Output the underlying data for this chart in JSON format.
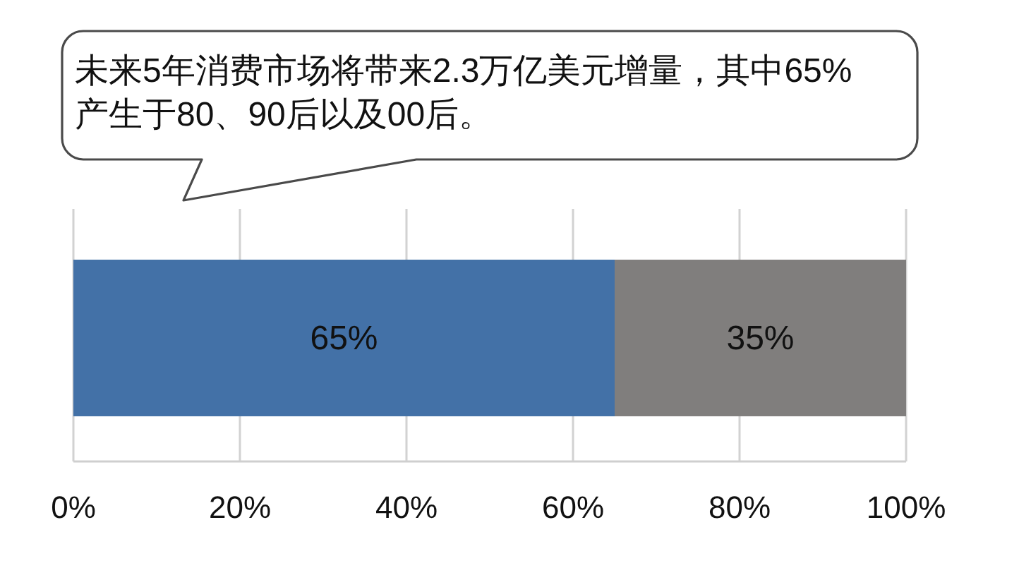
{
  "chart_data": {
    "type": "bar",
    "orientation": "horizontal",
    "stacked": true,
    "title": "未来5年消费市场将带来2.3万亿美元增量，其中65%产生于80、90后以及00后。",
    "categories": [
      null
    ],
    "series": [
      {
        "color": "#4371a7",
        "values": [
          65
        ],
        "value_labels": [
          "65%"
        ]
      },
      {
        "color": "#807e7d",
        "values": [
          35
        ],
        "value_labels": [
          "35%"
        ]
      }
    ],
    "xlim": [
      0,
      100
    ],
    "xticks": [
      {
        "value": 0,
        "label": "0%"
      },
      {
        "value": 20,
        "label": "20%"
      },
      {
        "value": 40,
        "label": "40%"
      },
      {
        "value": 60,
        "label": "60%"
      },
      {
        "value": 80,
        "label": "80%"
      },
      {
        "value": 100,
        "label": "100%"
      }
    ],
    "grid": "x"
  }
}
